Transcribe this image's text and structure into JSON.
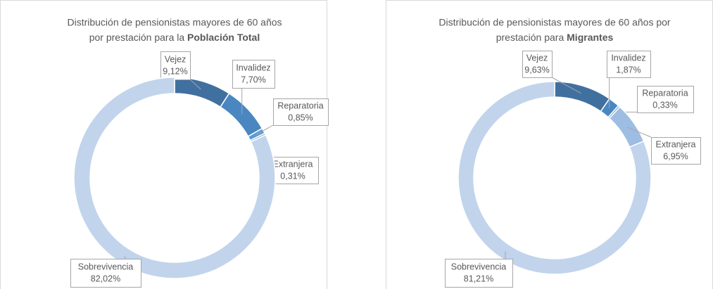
{
  "chart_data": [
    {
      "type": "donut",
      "title_lines": [
        "Distribución de pensionistas mayores de 60 años",
        "por prestación para la"
      ],
      "title_bold": "Población Total",
      "categories": [
        "Vejez",
        "Invalidez",
        "Reparatoria",
        "Extranjera",
        "Sobrevivencia"
      ],
      "values": [
        9.12,
        7.7,
        0.85,
        0.31,
        82.02
      ],
      "value_labels": [
        "9,12%",
        "7,70%",
        "0,85%",
        "0,31%",
        "82,02%"
      ],
      "colors": [
        "#40709f",
        "#4a87c1",
        "#5b9bd5",
        "#8fb4df",
        "#c1d4ec"
      ]
    },
    {
      "type": "donut",
      "title_lines": [
        "Distribución de pensionistas mayores de 60 años por",
        "prestación para"
      ],
      "title_bold": "Migrantes",
      "categories": [
        "Vejez",
        "Invalidez",
        "Reparatoria",
        "Extranjera",
        "Sobrevivencia"
      ],
      "values": [
        9.63,
        1.87,
        0.33,
        6.95,
        81.21
      ],
      "value_labels": [
        "9,63%",
        "1,87%",
        "0,33%",
        "6,95%",
        "81,21%"
      ],
      "colors": [
        "#40709f",
        "#4a87c1",
        "#6fa6da",
        "#9dbde2",
        "#c1d4ec"
      ]
    }
  ]
}
